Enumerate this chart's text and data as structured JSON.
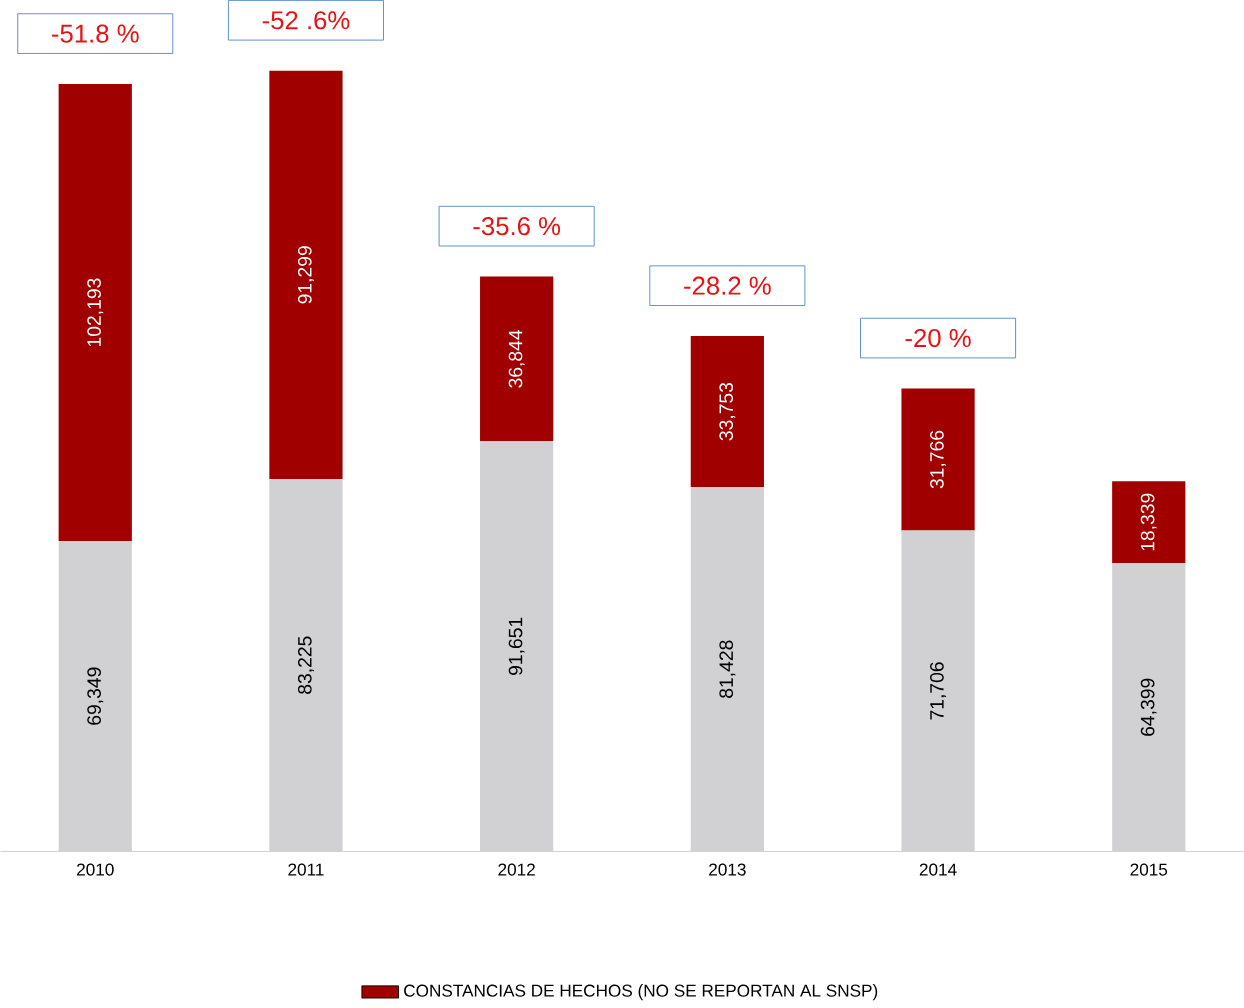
{
  "chart_data": {
    "type": "bar",
    "stacked": true,
    "categories": [
      "2010",
      "2011",
      "2012",
      "2013",
      "2014",
      "2015"
    ],
    "series": [
      {
        "color": "#d1d1d3",
        "values": [
          69349,
          83225,
          91651,
          81428,
          71706,
          64399
        ],
        "value_labels": [
          "69,349",
          "83,225",
          "91,651",
          "81,428",
          "71,706",
          "64,399"
        ]
      },
      {
        "name": "CONSTANCIAS DE HECHOS (NO SE REPORTAN AL SNSP)",
        "color": "#a00000",
        "values": [
          102193,
          91299,
          36844,
          33753,
          31766,
          18339
        ],
        "value_labels": [
          "102,193",
          "91,299",
          "36,844",
          "33,753",
          "31,766",
          "18,339"
        ]
      }
    ],
    "legend": "bottom",
    "annotations": [
      {
        "text": "-51.8 %",
        "x": "2010",
        "y": 171542
      },
      {
        "text": "-52 .6%",
        "x": "2011",
        "y": 174524
      },
      {
        "text": "-35.6 %",
        "x": "2012",
        "y": 128495
      },
      {
        "text": "-28.2 %",
        "x": "2013",
        "y": 115181
      },
      {
        "text": "-20 %",
        "x": "2014",
        "y": 103472
      }
    ]
  }
}
